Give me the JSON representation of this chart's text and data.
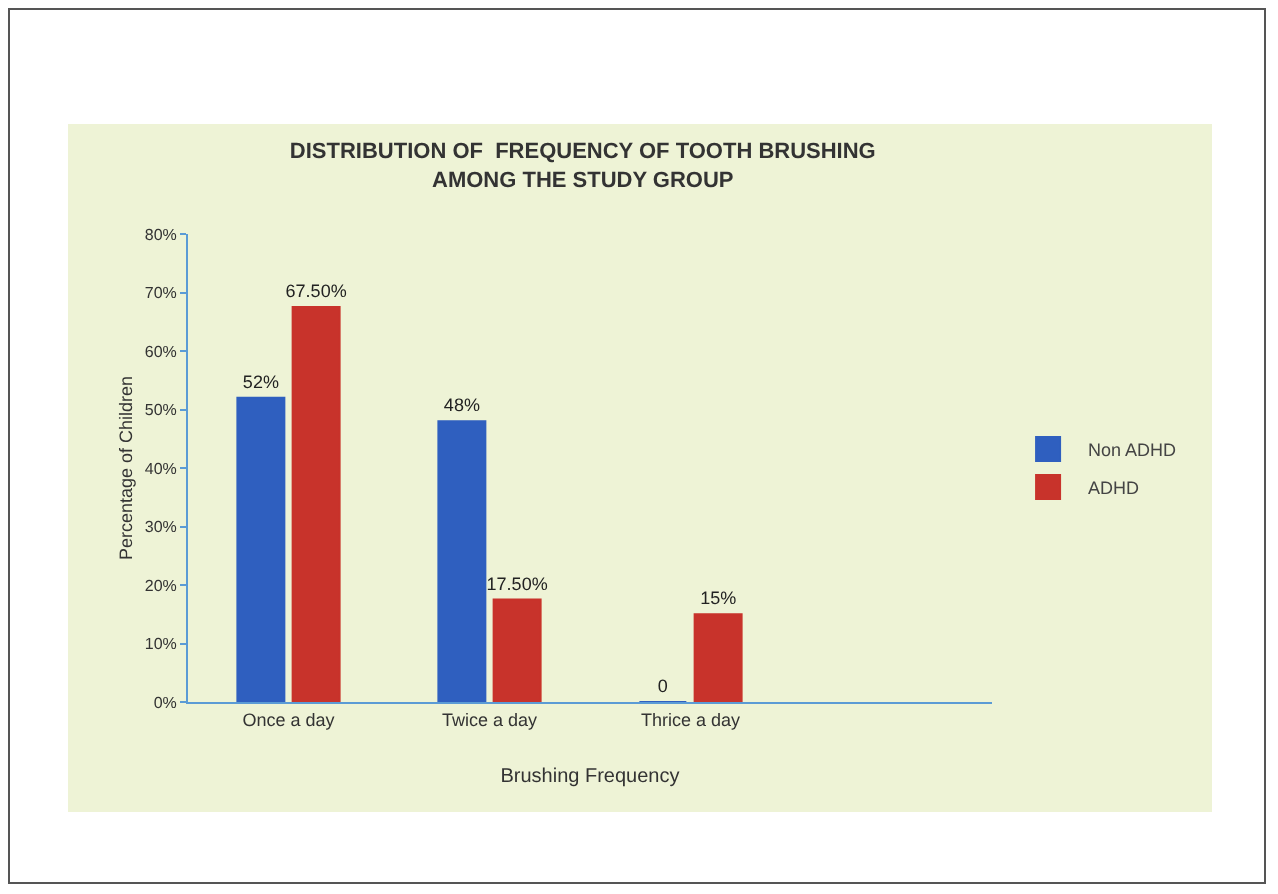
{
  "chart_data": {
    "type": "bar",
    "title": "DISTRIBUTION OF  FREQUENCY OF TOOTH BRUSHING\nAMONG THE STUDY GROUP",
    "xlabel": "Brushing Frequency",
    "ylabel": "Percentage of Children",
    "categories": [
      "Once a day",
      "Twice a day",
      "Thrice a day"
    ],
    "series": [
      {
        "name": "Non ADHD",
        "color": "#2f5fbf",
        "values": [
          52,
          48,
          0
        ],
        "value_labels": [
          "52%",
          "48%",
          "0"
        ]
      },
      {
        "name": "ADHD",
        "color": "#c8332b",
        "values": [
          67.5,
          17.5,
          15
        ],
        "value_labels": [
          "67.50%",
          "17.50%",
          "15%"
        ]
      }
    ],
    "ylim": [
      0,
      80
    ],
    "yticks": [
      {
        "value": 0,
        "label": "0%"
      },
      {
        "value": 10,
        "label": "10%"
      },
      {
        "value": 20,
        "label": "20%"
      },
      {
        "value": 30,
        "label": "30%"
      },
      {
        "value": 40,
        "label": "40%"
      },
      {
        "value": 50,
        "label": "50%"
      },
      {
        "value": 60,
        "label": "60%"
      },
      {
        "value": 70,
        "label": "70%"
      },
      {
        "value": 80,
        "label": "80%"
      }
    ],
    "grid": false,
    "legend": "right"
  }
}
